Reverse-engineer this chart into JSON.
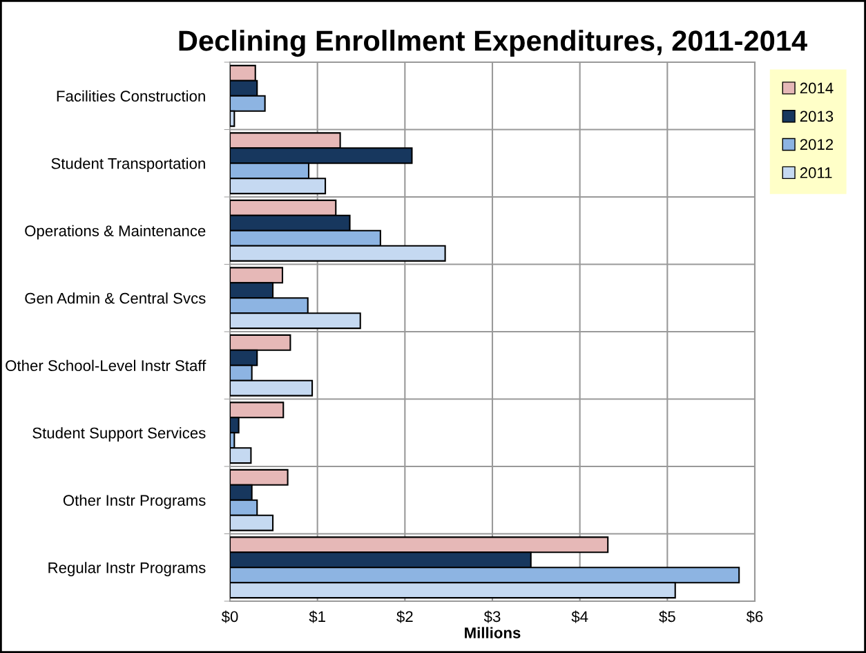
{
  "chart_data": {
    "type": "bar",
    "orientation": "horizontal",
    "title": "Declining Enrollment Expenditures, 2011-2014",
    "xlabel": "Millions",
    "categories": [
      "Facilities Construction",
      "Student Transportation",
      "Operations & Maintenance",
      "Gen Admin & Central Svcs",
      "Other School-Level Instr Staff",
      "Student Support Services",
      "Other Instr Programs",
      "Regular Instr Programs"
    ],
    "series": [
      {
        "name": "2014",
        "color": "#e6b8b7",
        "values": [
          0.29,
          1.26,
          1.21,
          0.6,
          0.69,
          0.61,
          0.66,
          4.32
        ]
      },
      {
        "name": "2013",
        "color": "#17375e",
        "values": [
          0.31,
          2.08,
          1.37,
          0.49,
          0.31,
          0.1,
          0.25,
          3.44
        ]
      },
      {
        "name": "2012",
        "color": "#8db4e2",
        "values": [
          0.4,
          0.9,
          1.72,
          0.89,
          0.25,
          0.05,
          0.31,
          5.82
        ]
      },
      {
        "name": "2011",
        "color": "#c5d9f1",
        "values": [
          0.05,
          1.09,
          2.46,
          1.49,
          0.94,
          0.24,
          0.49,
          5.09
        ]
      }
    ],
    "xlim": [
      0,
      6
    ],
    "xticks": [
      {
        "value": 0,
        "label": "$0"
      },
      {
        "value": 1,
        "label": "$1"
      },
      {
        "value": 2,
        "label": "$2"
      },
      {
        "value": 3,
        "label": "$3"
      },
      {
        "value": 4,
        "label": "$4"
      },
      {
        "value": 5,
        "label": "$5"
      },
      {
        "value": 6,
        "label": "$6"
      }
    ],
    "grid": true,
    "legend": "top right"
  }
}
